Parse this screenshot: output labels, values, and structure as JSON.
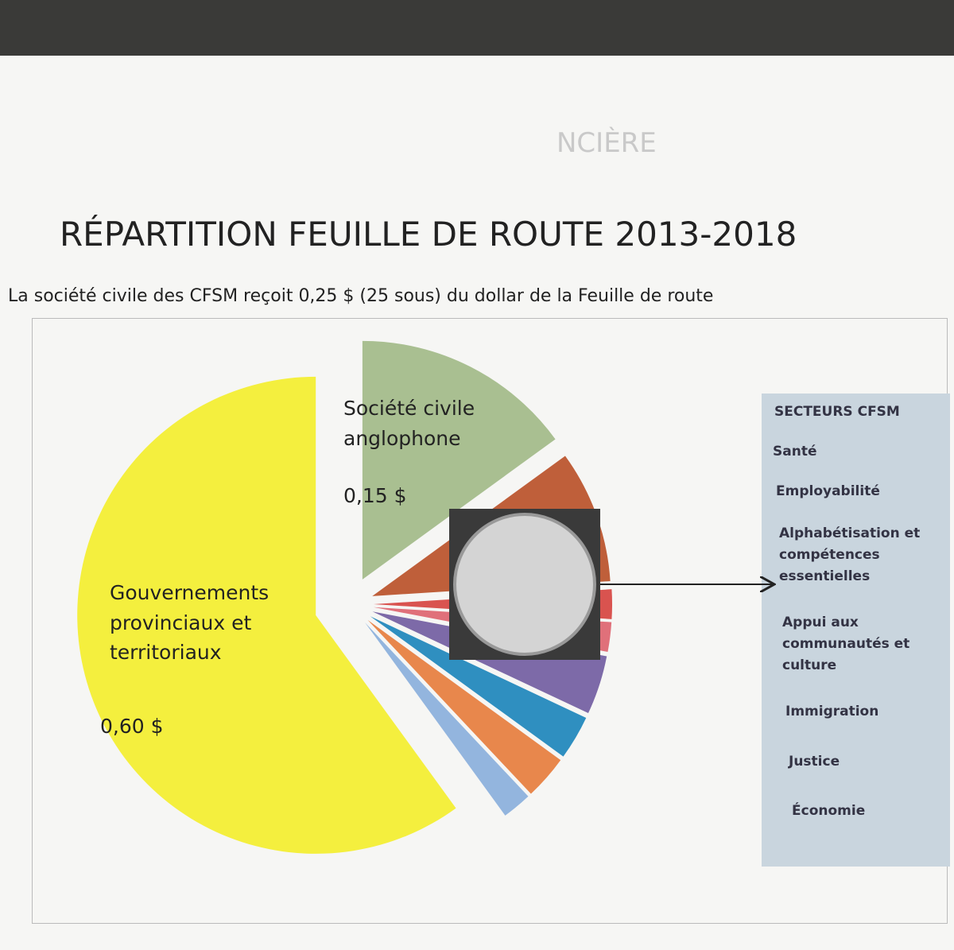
{
  "background_text": "NCIÈRE",
  "chart_data": {
    "type": "pie",
    "title": "RÉPARTITION FEUILLE DE ROUTE 2013-2018",
    "subtitle": "La société civile des CFSM reçoit 0,25 $ (25 sous) du dollar de la Feuille de route",
    "categories": [
      "Société civile anglophone",
      null,
      null,
      null,
      null,
      null,
      null,
      null,
      "Gouvernements provinciaux et territoriaux"
    ],
    "values": [
      0.15,
      0.09,
      0.02,
      0.02,
      0.04,
      0.03,
      0.03,
      0.02,
      0.6
    ],
    "value_labels": [
      "0,15 $",
      null,
      null,
      null,
      null,
      null,
      null,
      null,
      "0,60 $"
    ],
    "colors": [
      "#a9bf91",
      "#bf5f3a",
      "#d9534f",
      "#e0707a",
      "#7d6aa8",
      "#2f8fc0",
      "#e8874c",
      "#93b5de",
      "#f4ef3e"
    ],
    "sectors_title": "SECTEURS CFSM",
    "sectors": [
      "Santé",
      "Employabilité",
      "Alphabétisation et compétences essentielles",
      "Appui aux communautés et culture",
      "Immigration",
      "Justice",
      "Économie"
    ]
  }
}
